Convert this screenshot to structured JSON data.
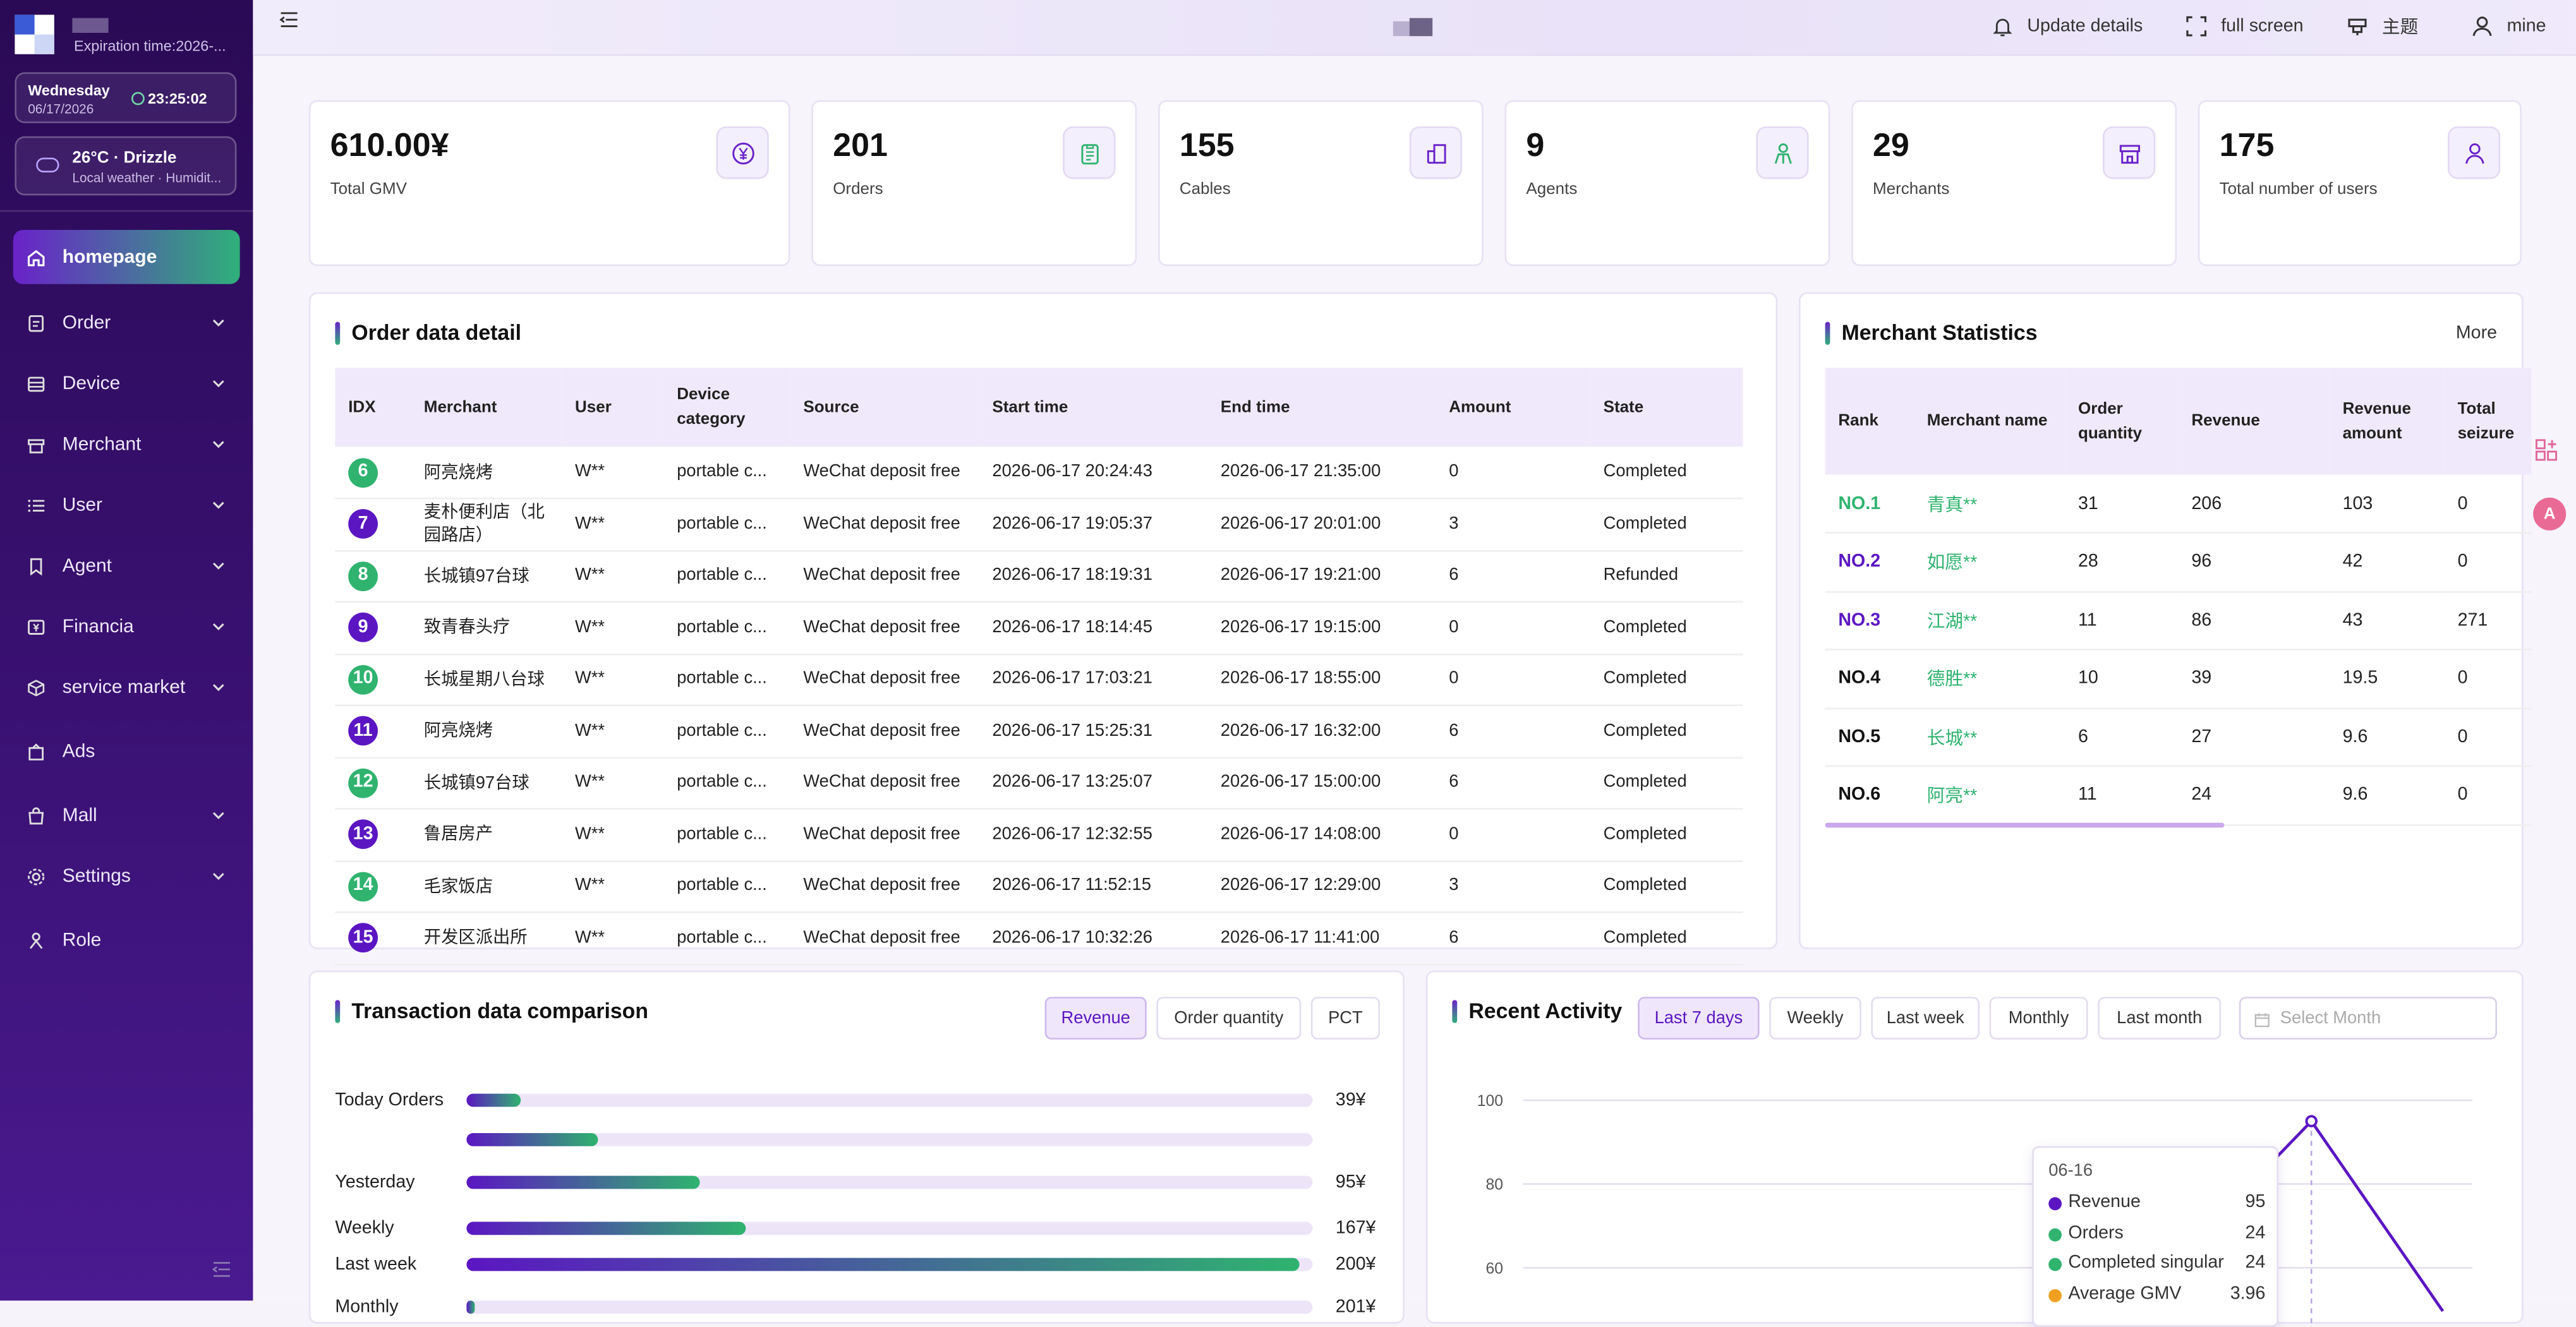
{
  "sidebar": {
    "expiration": "Expiration time:2026-...",
    "date": {
      "weekday": "Wednesday",
      "date": "06/17/2026",
      "time": "23:25:02"
    },
    "weather": {
      "title": "26°C · Drizzle",
      "subtitle": "Local weather · Humidit..."
    },
    "items": [
      {
        "label": "homepage",
        "icon": "home-icon"
      },
      {
        "label": "Order",
        "icon": "order-icon"
      },
      {
        "label": "Device",
        "icon": "device-icon"
      },
      {
        "label": "Merchant",
        "icon": "merchant-icon"
      },
      {
        "label": "User",
        "icon": "user-list-icon"
      },
      {
        "label": "Agent",
        "icon": "bookmark-icon"
      },
      {
        "label": "Financia",
        "icon": "finance-icon"
      },
      {
        "label": "service market",
        "icon": "cube-icon"
      },
      {
        "label": "Ads",
        "icon": "ads-icon"
      },
      {
        "label": "Mall",
        "icon": "bag-icon"
      },
      {
        "label": "Settings",
        "icon": "gear-icon"
      },
      {
        "label": "Role",
        "icon": "role-icon"
      }
    ]
  },
  "topbar": {
    "update": "Update details",
    "fullscreen": "full screen",
    "theme": "主题",
    "mine": "mine"
  },
  "stats": [
    {
      "value": "610.00¥",
      "label": "Total GMV"
    },
    {
      "value": "201",
      "label": "Orders"
    },
    {
      "value": "155",
      "label": "Cables"
    },
    {
      "value": "9",
      "label": "Agents"
    },
    {
      "value": "29",
      "label": "Merchants"
    },
    {
      "value": "175",
      "label": "Total number of users"
    }
  ],
  "orders": {
    "title": "Order data detail",
    "columns": [
      "IDX",
      "Merchant",
      "User",
      "Device category",
      "Source",
      "Start time",
      "End time",
      "Amount",
      "State"
    ],
    "rows": [
      {
        "idx": "6",
        "merchant": "阿亮烧烤",
        "user": "W**",
        "device": "portable c...",
        "source": "WeChat deposit free",
        "start": "2026-06-17 20:24:43",
        "end": "2026-06-17 21:35:00",
        "amount": "0",
        "state": "Completed"
      },
      {
        "idx": "7",
        "merchant": "麦朴便利店（北园路店）",
        "user": "W**",
        "device": "portable c...",
        "source": "WeChat deposit free",
        "start": "2026-06-17 19:05:37",
        "end": "2026-06-17 20:01:00",
        "amount": "3",
        "state": "Completed"
      },
      {
        "idx": "8",
        "merchant": "长城镇97台球",
        "user": "W**",
        "device": "portable c...",
        "source": "WeChat deposit free",
        "start": "2026-06-17 18:19:31",
        "end": "2026-06-17 19:21:00",
        "amount": "6",
        "state": "Refunded"
      },
      {
        "idx": "9",
        "merchant": "致青春头疗",
        "user": "W**",
        "device": "portable c...",
        "source": "WeChat deposit free",
        "start": "2026-06-17 18:14:45",
        "end": "2026-06-17 19:15:00",
        "amount": "0",
        "state": "Completed"
      },
      {
        "idx": "10",
        "merchant": "长城星期八台球",
        "user": "W**",
        "device": "portable c...",
        "source": "WeChat deposit free",
        "start": "2026-06-17 17:03:21",
        "end": "2026-06-17 18:55:00",
        "amount": "0",
        "state": "Completed"
      },
      {
        "idx": "11",
        "merchant": "阿亮烧烤",
        "user": "W**",
        "device": "portable c...",
        "source": "WeChat deposit free",
        "start": "2026-06-17 15:25:31",
        "end": "2026-06-17 16:32:00",
        "amount": "6",
        "state": "Completed"
      },
      {
        "idx": "12",
        "merchant": "长城镇97台球",
        "user": "W**",
        "device": "portable c...",
        "source": "WeChat deposit free",
        "start": "2026-06-17 13:25:07",
        "end": "2026-06-17 15:00:00",
        "amount": "6",
        "state": "Completed"
      },
      {
        "idx": "13",
        "merchant": "鲁居房产",
        "user": "W**",
        "device": "portable c...",
        "source": "WeChat deposit free",
        "start": "2026-06-17 12:32:55",
        "end": "2026-06-17 14:08:00",
        "amount": "0",
        "state": "Completed"
      },
      {
        "idx": "14",
        "merchant": "毛家饭店",
        "user": "W**",
        "device": "portable c...",
        "source": "WeChat deposit free",
        "start": "2026-06-17 11:52:15",
        "end": "2026-06-17 12:29:00",
        "amount": "3",
        "state": "Completed"
      },
      {
        "idx": "15",
        "merchant": "开发区派出所",
        "user": "W**",
        "device": "portable c...",
        "source": "WeChat deposit free",
        "start": "2026-06-17 10:32:26",
        "end": "2026-06-17 11:41:00",
        "amount": "6",
        "state": "Completed"
      }
    ]
  },
  "merchants": {
    "title": "Merchant Statistics",
    "more": "More",
    "columns": [
      "Rank",
      "Merchant name",
      "Order quantity",
      "Revenue",
      "Revenue amount",
      "Total seizure"
    ],
    "rows": [
      {
        "rank": "NO.1",
        "name": "青真**",
        "qty": "31",
        "revenue": "206",
        "amount": "103",
        "seize": "0"
      },
      {
        "rank": "NO.2",
        "name": "如愿**",
        "qty": "28",
        "revenue": "96",
        "amount": "42",
        "seize": "0"
      },
      {
        "rank": "NO.3",
        "name": "江湖**",
        "qty": "11",
        "revenue": "86",
        "amount": "43",
        "seize": "271"
      },
      {
        "rank": "NO.4",
        "name": "德胜**",
        "qty": "10",
        "revenue": "39",
        "amount": "19.5",
        "seize": "0"
      },
      {
        "rank": "NO.5",
        "name": "长城**",
        "qty": "6",
        "revenue": "27",
        "amount": "9.6",
        "seize": "0"
      },
      {
        "rank": "NO.6",
        "name": "阿亮**",
        "qty": "11",
        "revenue": "24",
        "amount": "9.6",
        "seize": "0"
      }
    ]
  },
  "transaction": {
    "title": "Transaction data comparison",
    "tabs": [
      "Revenue",
      "Order quantity",
      "PCT"
    ],
    "bars": [
      {
        "label": "Today Orders",
        "value": "39¥",
        "fraction": 0.065
      },
      {
        "label": "",
        "value": "",
        "fraction": 0.155
      },
      {
        "label": "Yesterday",
        "value": "95¥",
        "fraction": 0.275
      },
      {
        "label": "Weekly",
        "value": "167¥",
        "fraction": 0.33
      },
      {
        "label": "Last week",
        "value": "200¥",
        "fraction": 0.985
      },
      {
        "label": "Monthly",
        "value": "201¥",
        "fraction": 0.01
      }
    ]
  },
  "activity": {
    "title": "Recent Activity",
    "tabs": [
      "Last 7 days",
      "Weekly",
      "Last week",
      "Monthly",
      "Last month"
    ],
    "select_placeholder": "Select Month",
    "tooltip": {
      "date": "06-16",
      "items": [
        {
          "name": "Revenue",
          "value": "95",
          "color": "#5b16c2"
        },
        {
          "name": "Orders",
          "value": "24",
          "color": "#2fb36f"
        },
        {
          "name": "Completed singular",
          "value": "24",
          "color": "#2fb36f"
        },
        {
          "name": "Average GMV",
          "value": "3.96",
          "color": "#f0a020"
        }
      ]
    }
  },
  "chart_data": {
    "type": "line",
    "x": [
      "06-16",
      ""
    ],
    "y_ticks": [
      "100",
      "80",
      "60"
    ],
    "ylim": [
      60,
      100
    ],
    "series": [
      {
        "name": "Revenue",
        "values": [
          95,
          52
        ]
      }
    ]
  }
}
